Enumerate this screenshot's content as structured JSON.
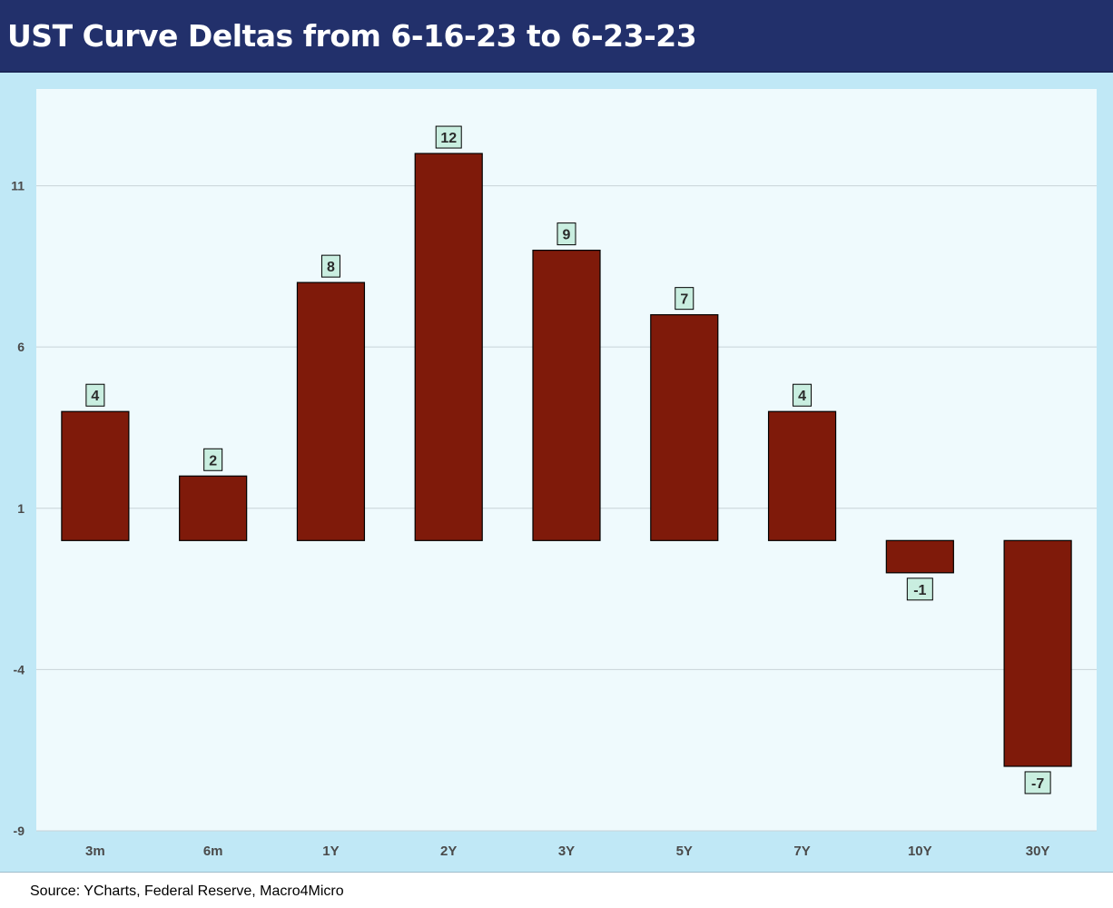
{
  "header": {
    "title": "UST Curve Deltas from 6-16-23 to 6-23-23"
  },
  "footer": {
    "source": "Source: YCharts, Federal Reserve, Macro4Micro"
  },
  "colors": {
    "bar": "#7f1a0a",
    "bar_outline": "#000000",
    "plot_bg": "#effafd",
    "frame_bg": "#c0e8f6",
    "label_bg": "#c9eee0",
    "header_bg": "#22306b",
    "gridline": "#c8d3d8"
  },
  "chart_data": {
    "type": "bar",
    "title": "UST Curve Deltas from 6-16-23 to 6-23-23",
    "categories": [
      "3m",
      "6m",
      "1Y",
      "2Y",
      "3Y",
      "5Y",
      "7Y",
      "10Y",
      "30Y"
    ],
    "values": [
      4,
      2,
      8,
      12,
      9,
      7,
      4,
      -1,
      -7
    ],
    "labels": [
      "4",
      "2",
      "8",
      "12",
      "9",
      "7",
      "4",
      "-1",
      "-7"
    ],
    "yticks": [
      -9,
      -4,
      1,
      6,
      11
    ],
    "ylim": [
      -9,
      14
    ],
    "xlabel": "",
    "ylabel": "",
    "grid": true,
    "legend": "none"
  }
}
